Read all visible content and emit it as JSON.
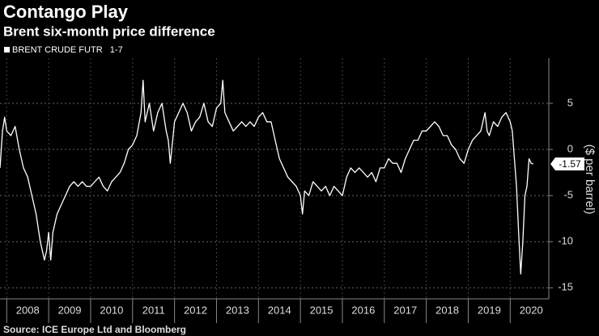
{
  "chart_data": {
    "type": "line",
    "title": "Contango Play",
    "subtitle": "Brent six-month price difference",
    "y_label": "($ per barrel)",
    "source": "Source: ICE Europe Ltd and Bloomberg",
    "xlim": [
      2007.84,
      2020.92
    ],
    "xticks": [
      2008,
      2009,
      2010,
      2011,
      2012,
      2013,
      2014,
      2015,
      2016,
      2017,
      2018,
      2019,
      2020
    ],
    "ylim": [
      -16.2,
      9.9
    ],
    "yticks": [
      5,
      0,
      -5,
      -10,
      -15
    ],
    "grid": true,
    "x": [
      2007.84,
      2007.9,
      2007.95,
      2008.0,
      2008.1,
      2008.2,
      2008.3,
      2008.4,
      2008.5,
      2008.6,
      2008.7,
      2008.8,
      2008.9,
      2008.95,
      2009.0,
      2009.05,
      2009.1,
      2009.2,
      2009.3,
      2009.4,
      2009.5,
      2009.6,
      2009.7,
      2009.8,
      2009.9,
      2010.0,
      2010.1,
      2010.2,
      2010.3,
      2010.4,
      2010.5,
      2010.6,
      2010.7,
      2010.8,
      2010.9,
      2011.0,
      2011.1,
      2011.2,
      2011.25,
      2011.3,
      2011.4,
      2011.5,
      2011.6,
      2011.7,
      2011.8,
      2011.85,
      2011.9,
      2012.0,
      2012.1,
      2012.2,
      2012.3,
      2012.4,
      2012.5,
      2012.6,
      2012.7,
      2012.8,
      2012.9,
      2013.0,
      2013.1,
      2013.15,
      2013.2,
      2013.3,
      2013.4,
      2013.5,
      2013.6,
      2013.7,
      2013.8,
      2013.9,
      2014.0,
      2014.1,
      2014.2,
      2014.3,
      2014.4,
      2014.5,
      2014.6,
      2014.7,
      2014.8,
      2014.9,
      2015.0,
      2015.05,
      2015.1,
      2015.2,
      2015.3,
      2015.4,
      2015.5,
      2015.6,
      2015.7,
      2015.8,
      2015.9,
      2016.0,
      2016.1,
      2016.2,
      2016.3,
      2016.4,
      2016.5,
      2016.6,
      2016.7,
      2016.8,
      2016.9,
      2017.0,
      2017.1,
      2017.2,
      2017.3,
      2017.4,
      2017.5,
      2017.6,
      2017.7,
      2017.8,
      2017.9,
      2018.0,
      2018.1,
      2018.2,
      2018.3,
      2018.4,
      2018.5,
      2018.6,
      2018.7,
      2018.8,
      2018.9,
      2019.0,
      2019.1,
      2019.2,
      2019.3,
      2019.4,
      2019.45,
      2019.5,
      2019.6,
      2019.7,
      2019.8,
      2019.9,
      2020.0,
      2020.05,
      2020.1,
      2020.15,
      2020.2,
      2020.25,
      2020.3,
      2020.35,
      2020.4,
      2020.45,
      2020.5,
      2020.55
    ],
    "series": [
      {
        "name": "BRENT CRUDE FUTR   1-7",
        "color": "#ffffff",
        "values": [
          -2,
          2,
          3.5,
          2,
          1.5,
          2.5,
          0,
          -2,
          -3,
          -5,
          -7,
          -10,
          -12,
          -11,
          -9,
          -12,
          -9,
          -7,
          -6,
          -5,
          -4,
          -3.5,
          -4,
          -3.5,
          -4,
          -4,
          -3.5,
          -3,
          -4,
          -4.5,
          -3.5,
          -3,
          -2.5,
          -1.5,
          0,
          0.5,
          1.5,
          4,
          7.5,
          3,
          5,
          2,
          4,
          5,
          2,
          1,
          -1.5,
          3,
          4,
          5,
          4,
          2,
          3,
          3.5,
          5,
          3,
          2.5,
          4.5,
          5,
          7.5,
          4,
          3,
          2,
          2.5,
          3,
          2.5,
          3,
          2.5,
          3.5,
          4,
          3,
          3,
          1,
          -1,
          -2,
          -3,
          -3.5,
          -4,
          -5,
          -7,
          -4.5,
          -5,
          -3.5,
          -4,
          -4.5,
          -4,
          -5,
          -4,
          -4.5,
          -5,
          -3,
          -2,
          -2.5,
          -2,
          -2.5,
          -3,
          -2.5,
          -3.5,
          -2,
          -2,
          -1,
          -1.5,
          -1.5,
          -2.5,
          -1,
          0,
          1,
          1,
          2,
          2,
          2.5,
          3,
          2.5,
          1.5,
          1.5,
          0.5,
          0,
          -1,
          -1.5,
          0,
          1,
          1.5,
          2,
          4,
          2,
          1.5,
          3,
          2.5,
          3.5,
          4,
          3,
          2,
          -1,
          -4,
          -9,
          -13.5,
          -10,
          -5,
          -4,
          -1,
          -1.5,
          -1.57
        ]
      }
    ]
  }
}
